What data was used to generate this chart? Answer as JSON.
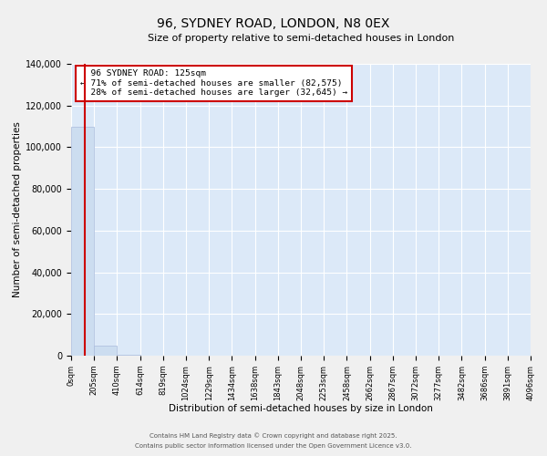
{
  "title": "96, SYDNEY ROAD, LONDON, N8 0EX",
  "subtitle": "Size of property relative to semi-detached houses in London",
  "xlabel": "Distribution of semi-detached houses by size in London",
  "ylabel": "Number of semi-detached properties",
  "property_label": "96 SYDNEY ROAD: 125sqm",
  "pct_smaller": 71,
  "count_smaller": 82575,
  "pct_larger": 28,
  "count_larger": 32645,
  "bins": [
    0,
    205,
    410,
    614,
    819,
    1024,
    1229,
    1434,
    1638,
    1843,
    2048,
    2253,
    2458,
    2662,
    2867,
    3072,
    3277,
    3482,
    3686,
    3891,
    4096
  ],
  "bin_labels": [
    "0sqm",
    "205sqm",
    "410sqm",
    "614sqm",
    "819sqm",
    "1024sqm",
    "1229sqm",
    "1434sqm",
    "1638sqm",
    "1843sqm",
    "2048sqm",
    "2253sqm",
    "2458sqm",
    "2662sqm",
    "2867sqm",
    "3072sqm",
    "3277sqm",
    "3482sqm",
    "3686sqm",
    "3891sqm",
    "4096sqm"
  ],
  "bar_heights": [
    110000,
    5000,
    400,
    150,
    80,
    40,
    20,
    12,
    8,
    5,
    3,
    2,
    2,
    1,
    1,
    1,
    1,
    1,
    0,
    0
  ],
  "bar_color": "#ccddf0",
  "bar_edge_color": "#aabbdd",
  "vline_color": "#cc0000",
  "vline_x": 125,
  "ylim": [
    0,
    140000
  ],
  "yticks": [
    0,
    20000,
    40000,
    60000,
    80000,
    100000,
    120000,
    140000
  ],
  "bg_color": "#dce9f8",
  "grid_color": "#ffffff",
  "box_edge_color": "#cc0000",
  "fig_bg_color": "#f0f0f0",
  "footer_line1": "Contains HM Land Registry data © Crown copyright and database right 2025.",
  "footer_line2": "Contains public sector information licensed under the Open Government Licence v3.0."
}
